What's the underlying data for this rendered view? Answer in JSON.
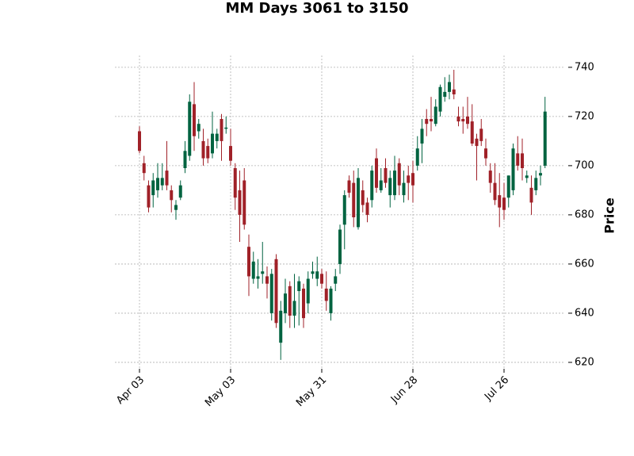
{
  "chart_data": {
    "type": "candlestick",
    "title": "MM Days 3061 to 3150",
    "y_label": "Price",
    "categories": [
      "Apr 03",
      null,
      null,
      null,
      null,
      null,
      null,
      null,
      null,
      null,
      null,
      null,
      null,
      null,
      null,
      null,
      null,
      null,
      null,
      null,
      "May 03",
      null,
      null,
      null,
      null,
      null,
      null,
      null,
      null,
      null,
      null,
      null,
      null,
      null,
      null,
      null,
      null,
      null,
      null,
      null,
      "May 31",
      null,
      null,
      null,
      null,
      null,
      null,
      null,
      null,
      null,
      null,
      null,
      null,
      null,
      null,
      null,
      null,
      null,
      null,
      null,
      "Jun 28",
      null,
      null,
      null,
      null,
      null,
      null,
      null,
      null,
      null,
      null,
      null,
      null,
      null,
      null,
      null,
      null,
      null,
      null,
      null,
      "Jul 26",
      null,
      null,
      null,
      null,
      null,
      null,
      null,
      null,
      null
    ],
    "open": [
      714,
      701,
      692,
      688,
      690,
      692,
      698,
      690,
      682,
      687,
      699,
      704,
      725,
      714,
      710,
      708,
      705,
      710,
      719,
      715,
      708,
      699,
      690,
      694,
      667,
      654,
      654,
      656,
      655,
      640,
      662,
      628,
      640,
      651,
      639,
      649,
      650,
      644,
      656,
      654,
      656,
      650,
      640,
      652,
      660,
      676,
      694,
      693,
      675,
      690,
      685,
      686,
      703,
      690,
      699,
      688,
      688,
      701,
      688,
      696,
      697,
      700,
      709,
      719,
      719,
      717,
      722,
      728,
      730,
      731,
      720,
      719,
      720,
      718,
      711,
      715,
      707,
      698,
      693,
      688,
      687,
      687,
      690,
      705,
      705,
      695,
      691,
      690,
      696,
      700
    ],
    "high": [
      716,
      704,
      694,
      697,
      701,
      701,
      710,
      692,
      686,
      694,
      710,
      729,
      734,
      719,
      715,
      711,
      722,
      715,
      721,
      720,
      715,
      701,
      698,
      699,
      672,
      665,
      662,
      669,
      659,
      658,
      664,
      645,
      654,
      653,
      656,
      655,
      652,
      657,
      661,
      663,
      658,
      657,
      651,
      658,
      676,
      690,
      696,
      698,
      699,
      694,
      687,
      700,
      707,
      699,
      703,
      698,
      704,
      703,
      698,
      700,
      702,
      712,
      719,
      723,
      728,
      727,
      733,
      736,
      737,
      739,
      724,
      724,
      728,
      725,
      713,
      719,
      711,
      701,
      701,
      697,
      693,
      696,
      709,
      712,
      711,
      698,
      696,
      698,
      700,
      728
    ],
    "low": [
      705,
      694,
      681,
      683,
      687,
      690,
      690,
      681,
      678,
      686,
      697,
      702,
      706,
      711,
      700,
      701,
      703,
      707,
      702,
      713,
      700,
      682,
      669,
      674,
      647,
      652,
      650,
      652,
      646,
      637,
      634,
      621,
      636,
      634,
      634,
      635,
      634,
      640,
      654,
      651,
      650,
      641,
      637,
      649,
      656,
      666,
      687,
      675,
      674,
      681,
      677,
      683,
      689,
      689,
      691,
      683,
      686,
      688,
      685,
      686,
      685,
      698,
      701,
      712,
      714,
      716,
      720,
      726,
      727,
      727,
      716,
      713,
      715,
      708,
      694,
      708,
      700,
      689,
      684,
      675,
      678,
      683,
      688,
      698,
      694,
      693,
      680,
      688,
      692,
      699
    ],
    "close": [
      706,
      697,
      683,
      694,
      695,
      695,
      692,
      686,
      684,
      692,
      706,
      726,
      712,
      717,
      703,
      703,
      713,
      713,
      710,
      715.5,
      702,
      687,
      680,
      676,
      655,
      661,
      655,
      657,
      652,
      656,
      636,
      641,
      648,
      639,
      645,
      653,
      638,
      654,
      657,
      657,
      652,
      645,
      650,
      655,
      674,
      688,
      689,
      679,
      695,
      684,
      680,
      698,
      691,
      694,
      693,
      695,
      698,
      692,
      693,
      693,
      692,
      707,
      715,
      717,
      718,
      724,
      732,
      730,
      734,
      729,
      718,
      718,
      717,
      709,
      708,
      710,
      703,
      693,
      686,
      683,
      682,
      696,
      707,
      700,
      699,
      696,
      685,
      695,
      697,
      722
    ],
    "up_color": "#006340",
    "down_color": "#a02128",
    "ylim": [
      617.4,
      744.8
    ],
    "yticks": [
      620,
      640,
      660,
      680,
      700,
      720,
      740
    ],
    "grid": true
  }
}
